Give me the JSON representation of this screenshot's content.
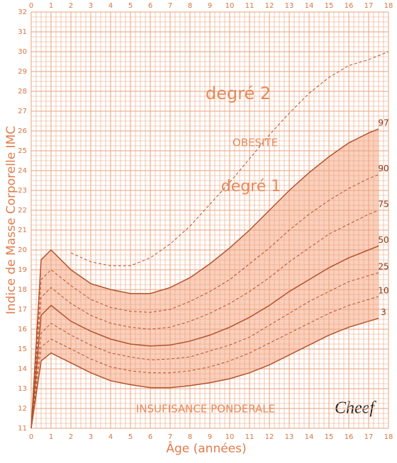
{
  "chart_data": {
    "type": "line",
    "y_label": "Indice de Masse Corporelle IMC",
    "x_label": "Âge (années)",
    "annotations": [
      "degré 2",
      "OBESITE",
      "degré 1",
      "INSUFISANCE PONDERALE"
    ],
    "xlim": [
      0,
      18
    ],
    "ylim": [
      11,
      32
    ],
    "xticks": [
      0,
      1,
      2,
      3,
      4,
      5,
      6,
      7,
      8,
      9,
      10,
      11,
      12,
      13,
      14,
      15,
      16,
      17,
      18
    ],
    "yticks": [
      11,
      12,
      13,
      14,
      15,
      16,
      17,
      18,
      19,
      20,
      21,
      22,
      23,
      24,
      25,
      26,
      27,
      28,
      29,
      30,
      31,
      32
    ],
    "grid": true,
    "grid_color": "#eaa27c",
    "band_color": "#fbd0bd",
    "x": [
      0,
      0.5,
      1,
      2,
      3,
      4,
      5,
      6,
      7,
      8,
      9,
      10,
      11,
      12,
      13,
      14,
      15,
      16,
      17,
      17.5
    ],
    "series": [
      {
        "name": "3",
        "color": "#b4532c",
        "dashed": false,
        "values": [
          11,
          14.4,
          14.8,
          14.3,
          13.8,
          13.4,
          13.2,
          13.05,
          13.05,
          13.15,
          13.3,
          13.5,
          13.8,
          14.2,
          14.7,
          15.2,
          15.7,
          16.1,
          16.4,
          16.55
        ]
      },
      {
        "name": "10",
        "color": "#b4532c",
        "dashed": true,
        "values": [
          11,
          15.1,
          15.5,
          15.0,
          14.5,
          14.1,
          13.9,
          13.8,
          13.8,
          13.9,
          14.1,
          14.4,
          14.8,
          15.3,
          15.8,
          16.3,
          16.8,
          17.2,
          17.5,
          17.65
        ]
      },
      {
        "name": "25",
        "color": "#b4532c",
        "dashed": true,
        "values": [
          11,
          15.8,
          16.3,
          15.7,
          15.2,
          14.8,
          14.6,
          14.45,
          14.5,
          14.6,
          14.9,
          15.2,
          15.6,
          16.2,
          16.8,
          17.4,
          17.9,
          18.4,
          18.7,
          18.85
        ]
      },
      {
        "name": "50",
        "color": "#b4532c",
        "dashed": false,
        "values": [
          11,
          16.7,
          17.2,
          16.4,
          15.9,
          15.5,
          15.25,
          15.15,
          15.2,
          15.4,
          15.7,
          16.1,
          16.6,
          17.2,
          17.9,
          18.5,
          19.1,
          19.6,
          20.0,
          20.2
        ]
      },
      {
        "name": "75",
        "color": "#b4532c",
        "dashed": true,
        "values": [
          11,
          17.6,
          18.1,
          17.3,
          16.7,
          16.3,
          16.1,
          16.0,
          16.1,
          16.4,
          16.8,
          17.3,
          17.9,
          18.6,
          19.4,
          20.1,
          20.8,
          21.3,
          21.8,
          22.0
        ]
      },
      {
        "name": "90",
        "color": "#b4532c",
        "dashed": true,
        "values": [
          11,
          18.5,
          19.0,
          18.2,
          17.5,
          17.1,
          16.9,
          16.85,
          17.0,
          17.4,
          17.9,
          18.5,
          19.3,
          20.1,
          21.0,
          21.8,
          22.5,
          23.1,
          23.6,
          23.8
        ]
      },
      {
        "name": "97",
        "color": "#b4532c",
        "dashed": false,
        "values": [
          11,
          19.5,
          20.0,
          19.0,
          18.3,
          18.0,
          17.8,
          17.8,
          18.1,
          18.6,
          19.3,
          20.1,
          21.0,
          22.0,
          23.0,
          23.9,
          24.7,
          25.4,
          25.9,
          26.1
        ]
      }
    ],
    "threshold": {
      "color": "#b4532c",
      "dashed": true,
      "x": [
        2,
        3,
        4,
        5,
        6,
        7,
        8,
        9,
        10,
        11,
        12,
        13,
        14,
        15,
        16,
        17,
        18
      ],
      "values": [
        19.85,
        19.4,
        19.2,
        19.2,
        19.6,
        20.3,
        21.2,
        22.3,
        23.4,
        24.6,
        25.8,
        26.9,
        27.9,
        28.7,
        29.3,
        29.6,
        30.0
      ]
    }
  },
  "logo": "Cheef"
}
